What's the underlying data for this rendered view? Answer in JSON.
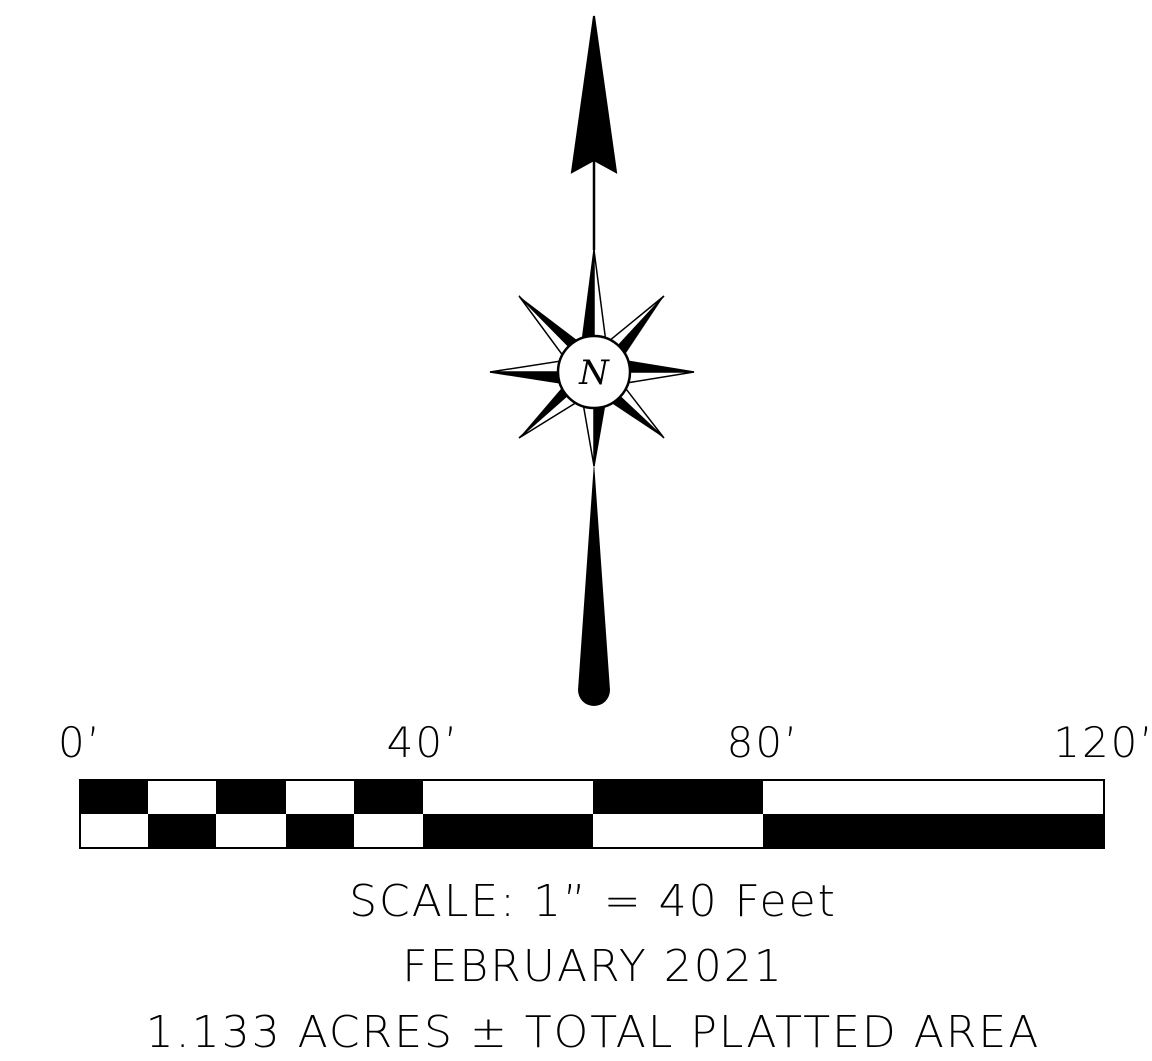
{
  "north_arrow": {
    "letter": "N"
  },
  "scale_bar": {
    "ticks": [
      "0’",
      "40’",
      "80’",
      "120’"
    ],
    "scale_text": "SCALE:  1”  =  40  Feet"
  },
  "notes": {
    "date": "FEBRUARY  2021",
    "area": "1.133  ACRES  ±  TOTAL  PLATTED  AREA"
  },
  "colors": {
    "ink": "#000000",
    "paper": "#ffffff"
  }
}
